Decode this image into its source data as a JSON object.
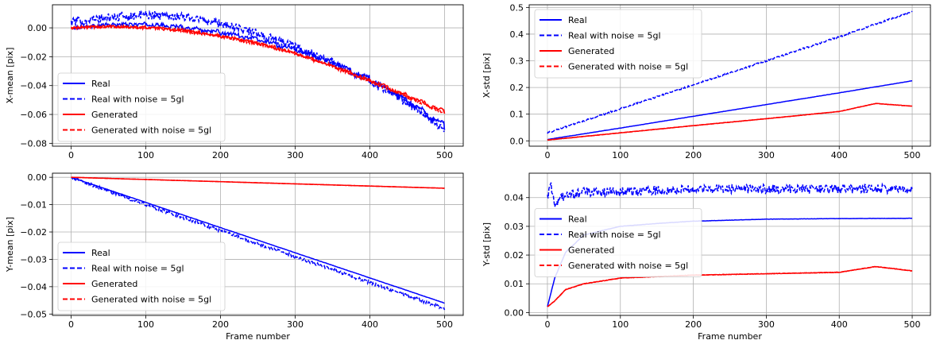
{
  "chart_data": [
    {
      "type": "line",
      "ylabel": "X-mean [pix]",
      "xlabel": "",
      "xlim": [
        -25,
        525
      ],
      "ylim": [
        -0.082,
        0.016
      ],
      "xticks": [
        0,
        100,
        200,
        300,
        400,
        500
      ],
      "yticks": [
        0.0,
        -0.02,
        -0.04,
        -0.06,
        -0.08
      ],
      "ytick_labels": [
        "0.00",
        "−0.02",
        "−0.04",
        "−0.06",
        "−0.08"
      ],
      "grid": true,
      "legend_position": "lower-left",
      "series": [
        {
          "name": "Real",
          "color": "#0000ff",
          "style": "solid",
          "x": [
            0,
            50,
            100,
            150,
            200,
            250,
            300,
            350,
            400,
            450,
            500
          ],
          "y": [
            0.0,
            0.002,
            0.002,
            0.0,
            -0.004,
            -0.009,
            -0.016,
            -0.025,
            -0.037,
            -0.052,
            -0.07
          ]
        },
        {
          "name": "Real with noise = 5gl",
          "color": "#0000ff",
          "style": "dashed",
          "x": [
            0,
            50,
            100,
            150,
            200,
            250,
            300,
            350,
            400,
            450,
            500
          ],
          "y": [
            0.004,
            0.007,
            0.009,
            0.008,
            0.003,
            -0.004,
            -0.013,
            -0.024,
            -0.037,
            -0.052,
            -0.07
          ]
        },
        {
          "name": "Generated",
          "color": "#ff0000",
          "style": "solid",
          "x": [
            0,
            50,
            100,
            150,
            200,
            250,
            300,
            350,
            400,
            450,
            500
          ],
          "y": [
            0.0,
            0.001,
            0.0,
            -0.002,
            -0.006,
            -0.011,
            -0.018,
            -0.027,
            -0.037,
            -0.048,
            -0.059
          ]
        },
        {
          "name": "Generated with noise = 5gl",
          "color": "#ff0000",
          "style": "dashed",
          "x": [
            0,
            50,
            100,
            150,
            200,
            250,
            300,
            350,
            400,
            450,
            500
          ],
          "y": [
            0.0,
            0.001,
            0.0,
            -0.002,
            -0.006,
            -0.011,
            -0.018,
            -0.027,
            -0.037,
            -0.048,
            -0.059
          ]
        }
      ]
    },
    {
      "type": "line",
      "ylabel": "X-std [pix]",
      "xlabel": "",
      "xlim": [
        -25,
        525
      ],
      "ylim": [
        -0.02,
        0.51
      ],
      "xticks": [
        0,
        100,
        200,
        300,
        400,
        500
      ],
      "yticks": [
        0.0,
        0.1,
        0.2,
        0.3,
        0.4,
        0.5
      ],
      "ytick_labels": [
        "0.0",
        "0.1",
        "0.2",
        "0.3",
        "0.4",
        "0.5"
      ],
      "grid": true,
      "legend_position": "top-left",
      "series": [
        {
          "name": "Real",
          "color": "#0000ff",
          "style": "solid",
          "x": [
            0,
            100,
            200,
            300,
            400,
            500
          ],
          "y": [
            0.005,
            0.048,
            0.092,
            0.136,
            0.18,
            0.225
          ]
        },
        {
          "name": "Real with noise = 5gl",
          "color": "#0000ff",
          "style": "dashed",
          "x": [
            0,
            100,
            200,
            300,
            400,
            500
          ],
          "y": [
            0.03,
            0.12,
            0.21,
            0.3,
            0.39,
            0.485
          ]
        },
        {
          "name": "Generated",
          "color": "#ff0000",
          "style": "solid",
          "x": [
            0,
            100,
            200,
            300,
            400,
            450,
            500
          ],
          "y": [
            0.003,
            0.03,
            0.057,
            0.083,
            0.11,
            0.14,
            0.13
          ]
        },
        {
          "name": "Generated with noise = 5gl",
          "color": "#ff0000",
          "style": "dashed",
          "x": [
            0,
            100,
            200,
            300,
            400,
            450,
            500
          ],
          "y": [
            0.003,
            0.03,
            0.057,
            0.083,
            0.11,
            0.14,
            0.13
          ]
        }
      ]
    },
    {
      "type": "line",
      "ylabel": "Y-mean [pix]",
      "xlabel": "Frame number",
      "xlim": [
        -25,
        525
      ],
      "ylim": [
        -0.0505,
        0.0015
      ],
      "xticks": [
        0,
        100,
        200,
        300,
        400,
        500
      ],
      "yticks": [
        0.0,
        -0.01,
        -0.02,
        -0.03,
        -0.04,
        -0.05
      ],
      "ytick_labels": [
        "0.00",
        "−0.01",
        "−0.02",
        "−0.03",
        "−0.04",
        "−0.05"
      ],
      "grid": true,
      "legend_position": "lower-left",
      "series": [
        {
          "name": "Real",
          "color": "#0000ff",
          "style": "solid",
          "x": [
            0,
            100,
            200,
            300,
            400,
            500
          ],
          "y": [
            0.0,
            -0.0092,
            -0.0184,
            -0.0276,
            -0.0368,
            -0.046
          ]
        },
        {
          "name": "Real with noise = 5gl",
          "color": "#0000ff",
          "style": "dashed",
          "x": [
            0,
            100,
            200,
            300,
            400,
            500
          ],
          "y": [
            0.0,
            -0.01,
            -0.0195,
            -0.029,
            -0.0385,
            -0.048
          ]
        },
        {
          "name": "Generated",
          "color": "#ff0000",
          "style": "solid",
          "x": [
            0,
            100,
            200,
            300,
            400,
            500
          ],
          "y": [
            0.0,
            -0.0008,
            -0.0016,
            -0.0024,
            -0.0032,
            -0.004
          ]
        },
        {
          "name": "Generated with noise = 5gl",
          "color": "#ff0000",
          "style": "dashed",
          "x": [
            0,
            100,
            200,
            300,
            400,
            500
          ],
          "y": [
            0.0,
            -0.0008,
            -0.0016,
            -0.0024,
            -0.0032,
            -0.004
          ]
        }
      ]
    },
    {
      "type": "line",
      "ylabel": "Y-std [pix]",
      "xlabel": "Frame number",
      "xlim": [
        -25,
        525
      ],
      "ylim": [
        -0.001,
        0.0485
      ],
      "xticks": [
        0,
        100,
        200,
        300,
        400,
        500
      ],
      "yticks": [
        0.0,
        0.01,
        0.02,
        0.03,
        0.04
      ],
      "ytick_labels": [
        "0.00",
        "0.01",
        "0.02",
        "0.03",
        "0.04"
      ],
      "grid": true,
      "legend_position": "center-left",
      "series": [
        {
          "name": "Real",
          "color": "#0000ff",
          "style": "solid",
          "x": [
            0,
            10,
            25,
            50,
            100,
            150,
            200,
            300,
            400,
            500
          ],
          "y": [
            0.002,
            0.012,
            0.021,
            0.027,
            0.03,
            0.031,
            0.0318,
            0.0325,
            0.0327,
            0.0328
          ]
        },
        {
          "name": "Real with noise = 5gl",
          "color": "#0000ff",
          "style": "dashed",
          "x": [
            0,
            5,
            10,
            20,
            50,
            100,
            200,
            300,
            400,
            500
          ],
          "y": [
            0.04,
            0.044,
            0.038,
            0.04,
            0.042,
            0.042,
            0.043,
            0.043,
            0.043,
            0.043
          ]
        },
        {
          "name": "Generated",
          "color": "#ff0000",
          "style": "solid",
          "x": [
            0,
            10,
            25,
            50,
            100,
            200,
            300,
            400,
            450,
            500
          ],
          "y": [
            0.002,
            0.004,
            0.008,
            0.01,
            0.012,
            0.013,
            0.0135,
            0.014,
            0.016,
            0.0145
          ]
        },
        {
          "name": "Generated with noise = 5gl",
          "color": "#ff0000",
          "style": "dashed",
          "x": [
            0,
            10,
            25,
            50,
            100,
            200,
            300,
            400,
            450,
            500
          ],
          "y": [
            0.002,
            0.004,
            0.008,
            0.01,
            0.012,
            0.013,
            0.0135,
            0.014,
            0.016,
            0.0145
          ]
        }
      ]
    }
  ]
}
